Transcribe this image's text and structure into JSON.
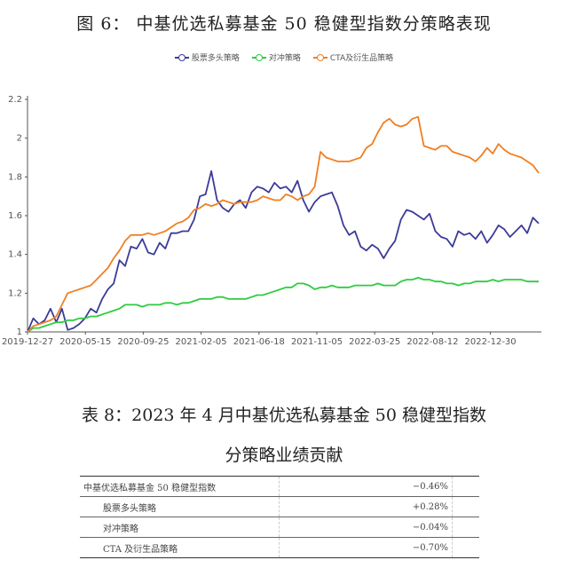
{
  "figure": {
    "title": "图 6： 中基优选私募基金 50 稳健型指数分策略表现"
  },
  "legend": [
    {
      "label": "股票多头策略",
      "color": "#3b3b98"
    },
    {
      "label": "对冲策略",
      "color": "#2ecc40"
    },
    {
      "label": "CTA及衍生品策略",
      "color": "#f07f22"
    }
  ],
  "chart_data": {
    "type": "line",
    "title": "图 6： 中基优选私募基金 50 稳健型指数分策略表现",
    "xlabel": "",
    "ylabel": "",
    "ylim": [
      1.0,
      2.2
    ],
    "yticks": [
      1,
      1.2,
      1.4,
      1.6,
      1.8,
      2,
      2.2
    ],
    "grid": false,
    "legend_position": "top",
    "x_tick_labels": [
      "2019-12-27",
      "2020-05-15",
      "2020-09-25",
      "2021-02-05",
      "2021-06-18",
      "2021-11-05",
      "2022-03-25",
      "2022-08-12",
      "2022-12-30"
    ],
    "x": [
      0,
      1,
      2,
      3,
      4,
      5,
      6,
      7,
      8,
      9,
      10,
      11,
      12,
      13,
      14,
      15,
      16,
      17,
      18,
      19,
      20,
      21,
      22,
      23,
      24,
      25,
      26,
      27,
      28,
      29,
      30,
      31,
      32,
      33,
      34,
      35,
      36,
      37,
      38,
      39,
      40,
      41,
      42,
      43,
      44,
      45,
      46,
      47,
      48,
      49,
      50,
      51,
      52,
      53,
      54,
      55,
      56,
      57,
      58,
      59,
      60,
      61,
      62,
      63,
      64,
      65,
      66,
      67,
      68,
      69,
      70,
      71,
      72,
      73,
      74,
      75,
      76,
      77,
      78,
      79,
      80,
      81,
      82,
      83,
      84,
      85,
      86,
      87,
      88,
      89
    ],
    "series": [
      {
        "name": "股票多头策略",
        "color": "#3b3b98",
        "values": [
          1.0,
          1.07,
          1.04,
          1.06,
          1.12,
          1.05,
          1.12,
          1.01,
          1.02,
          1.04,
          1.07,
          1.12,
          1.1,
          1.17,
          1.22,
          1.25,
          1.37,
          1.34,
          1.44,
          1.43,
          1.48,
          1.41,
          1.4,
          1.46,
          1.43,
          1.51,
          1.51,
          1.52,
          1.52,
          1.58,
          1.7,
          1.71,
          1.83,
          1.68,
          1.64,
          1.62,
          1.66,
          1.68,
          1.64,
          1.72,
          1.75,
          1.74,
          1.72,
          1.77,
          1.74,
          1.75,
          1.72,
          1.78,
          1.68,
          1.62,
          1.67,
          1.7,
          1.71,
          1.72,
          1.65,
          1.55,
          1.5,
          1.52,
          1.44,
          1.42,
          1.45,
          1.43,
          1.38,
          1.43,
          1.47,
          1.58,
          1.63,
          1.62,
          1.6,
          1.58,
          1.61,
          1.52,
          1.49,
          1.48,
          1.44,
          1.52,
          1.5,
          1.51,
          1.48,
          1.52,
          1.46,
          1.5,
          1.55,
          1.53,
          1.49,
          1.52,
          1.55,
          1.51,
          1.59,
          1.56
        ],
        "_note": "values approximate, read off chart"
      },
      {
        "name": "对冲策略",
        "color": "#2ecc40",
        "values": [
          1.0,
          1.02,
          1.02,
          1.03,
          1.04,
          1.05,
          1.05,
          1.06,
          1.06,
          1.07,
          1.07,
          1.08,
          1.08,
          1.09,
          1.1,
          1.11,
          1.12,
          1.14,
          1.14,
          1.14,
          1.13,
          1.14,
          1.14,
          1.14,
          1.15,
          1.15,
          1.14,
          1.15,
          1.15,
          1.16,
          1.17,
          1.17,
          1.17,
          1.18,
          1.18,
          1.17,
          1.17,
          1.17,
          1.17,
          1.18,
          1.19,
          1.19,
          1.2,
          1.21,
          1.22,
          1.23,
          1.23,
          1.25,
          1.25,
          1.24,
          1.22,
          1.23,
          1.23,
          1.24,
          1.23,
          1.23,
          1.23,
          1.24,
          1.24,
          1.24,
          1.24,
          1.25,
          1.24,
          1.24,
          1.24,
          1.26,
          1.27,
          1.27,
          1.28,
          1.27,
          1.27,
          1.26,
          1.26,
          1.25,
          1.25,
          1.24,
          1.25,
          1.25,
          1.26,
          1.26,
          1.26,
          1.27,
          1.26,
          1.27,
          1.27,
          1.27,
          1.27,
          1.26,
          1.26,
          1.26
        ]
      },
      {
        "name": "CTA及衍生品策略",
        "color": "#f07f22",
        "values": [
          1.0,
          1.03,
          1.04,
          1.05,
          1.06,
          1.08,
          1.14,
          1.2,
          1.21,
          1.22,
          1.23,
          1.24,
          1.27,
          1.3,
          1.33,
          1.38,
          1.42,
          1.47,
          1.5,
          1.5,
          1.5,
          1.51,
          1.5,
          1.51,
          1.52,
          1.54,
          1.56,
          1.57,
          1.59,
          1.63,
          1.64,
          1.66,
          1.65,
          1.66,
          1.68,
          1.67,
          1.66,
          1.67,
          1.67,
          1.67,
          1.68,
          1.7,
          1.69,
          1.68,
          1.68,
          1.71,
          1.7,
          1.68,
          1.7,
          1.71,
          1.75,
          1.93,
          1.9,
          1.89,
          1.88,
          1.88,
          1.88,
          1.89,
          1.9,
          1.95,
          1.97,
          2.03,
          2.08,
          2.1,
          2.07,
          2.06,
          2.07,
          2.1,
          2.11,
          1.96,
          1.95,
          1.94,
          1.96,
          1.96,
          1.93,
          1.92,
          1.91,
          1.9,
          1.88,
          1.91,
          1.95,
          1.92,
          1.97,
          1.94,
          1.92,
          1.91,
          1.9,
          1.88,
          1.86,
          1.82
        ]
      }
    ]
  },
  "table": {
    "title_line1": "表 8：2023 年 4 月中基优选私募基金 50 稳健型指数",
    "title_line2": "分策略业绩贡献",
    "rows": [
      {
        "name": "中基优选私募基金 50 稳健型指数",
        "value": "−0.46%",
        "indent": false
      },
      {
        "name": "股票多头策略",
        "value": "+0.28%",
        "indent": true
      },
      {
        "name": "对冲策略",
        "value": "−0.04%",
        "indent": true
      },
      {
        "name": "CTA 及衍生品策略",
        "value": "−0.70%",
        "indent": true
      }
    ]
  }
}
